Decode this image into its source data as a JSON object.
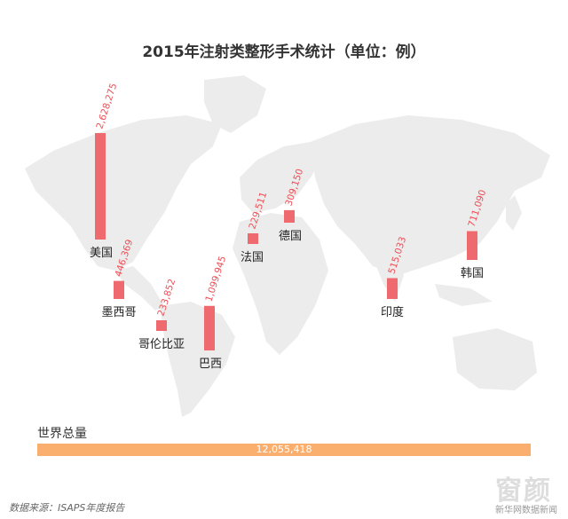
{
  "chart_data": {
    "type": "bar",
    "title": "2015年注射类整形手术统计（单位：例）",
    "categories": [
      "美国",
      "墨西哥",
      "哥伦比亚",
      "巴西",
      "法国",
      "德国",
      "印度",
      "韩国"
    ],
    "values": [
      2628275,
      446369,
      233852,
      1099945,
      229511,
      309150,
      515033,
      711090
    ],
    "value_labels": [
      "2,628,275",
      "446,369",
      "233,852",
      "1,099,945",
      "229,511",
      "309,150",
      "515,033",
      "711,090"
    ],
    "total": {
      "label": "世界总量",
      "value": 12055418,
      "value_label": "12,055,418"
    },
    "source": "数据来源：ISAPS年度报告",
    "brand": "新华网数据新闻",
    "watermark": "窗颜",
    "colors": {
      "bar": "#ef6a6f",
      "value_text": "#ef4f57",
      "total_bar": "#fbaf6f",
      "map": "#ececec"
    }
  }
}
